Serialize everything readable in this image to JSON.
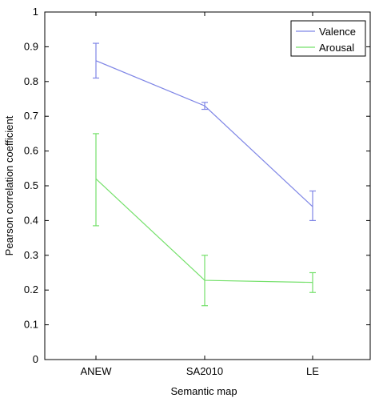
{
  "chart_data": {
    "type": "line",
    "xlabel": "Semantic map",
    "ylabel": "Pearson correlation coefficient",
    "categories": [
      "ANEW",
      "SA2010",
      "LE"
    ],
    "ylim": [
      0,
      1
    ],
    "yticks": [
      0,
      0.1,
      0.2,
      0.3,
      0.4,
      0.5,
      0.6,
      0.7,
      0.8,
      0.9,
      1
    ],
    "ytick_labels": [
      "0",
      "0.1",
      "0.2",
      "0.3",
      "0.4",
      "0.5",
      "0.6",
      "0.7",
      "0.8",
      "0.9",
      "1"
    ],
    "grid": false,
    "legend_position": "top-right",
    "series": [
      {
        "name": "Valence",
        "color": "#7f86e6",
        "values": [
          0.86,
          0.73,
          0.44
        ],
        "error_low": [
          0.81,
          0.72,
          0.4
        ],
        "error_high": [
          0.91,
          0.74,
          0.485
        ]
      },
      {
        "name": "Arousal",
        "color": "#74e06a",
        "values": [
          0.52,
          0.228,
          0.222
        ],
        "error_low": [
          0.385,
          0.155,
          0.193
        ],
        "error_high": [
          0.65,
          0.3,
          0.25
        ]
      }
    ]
  }
}
